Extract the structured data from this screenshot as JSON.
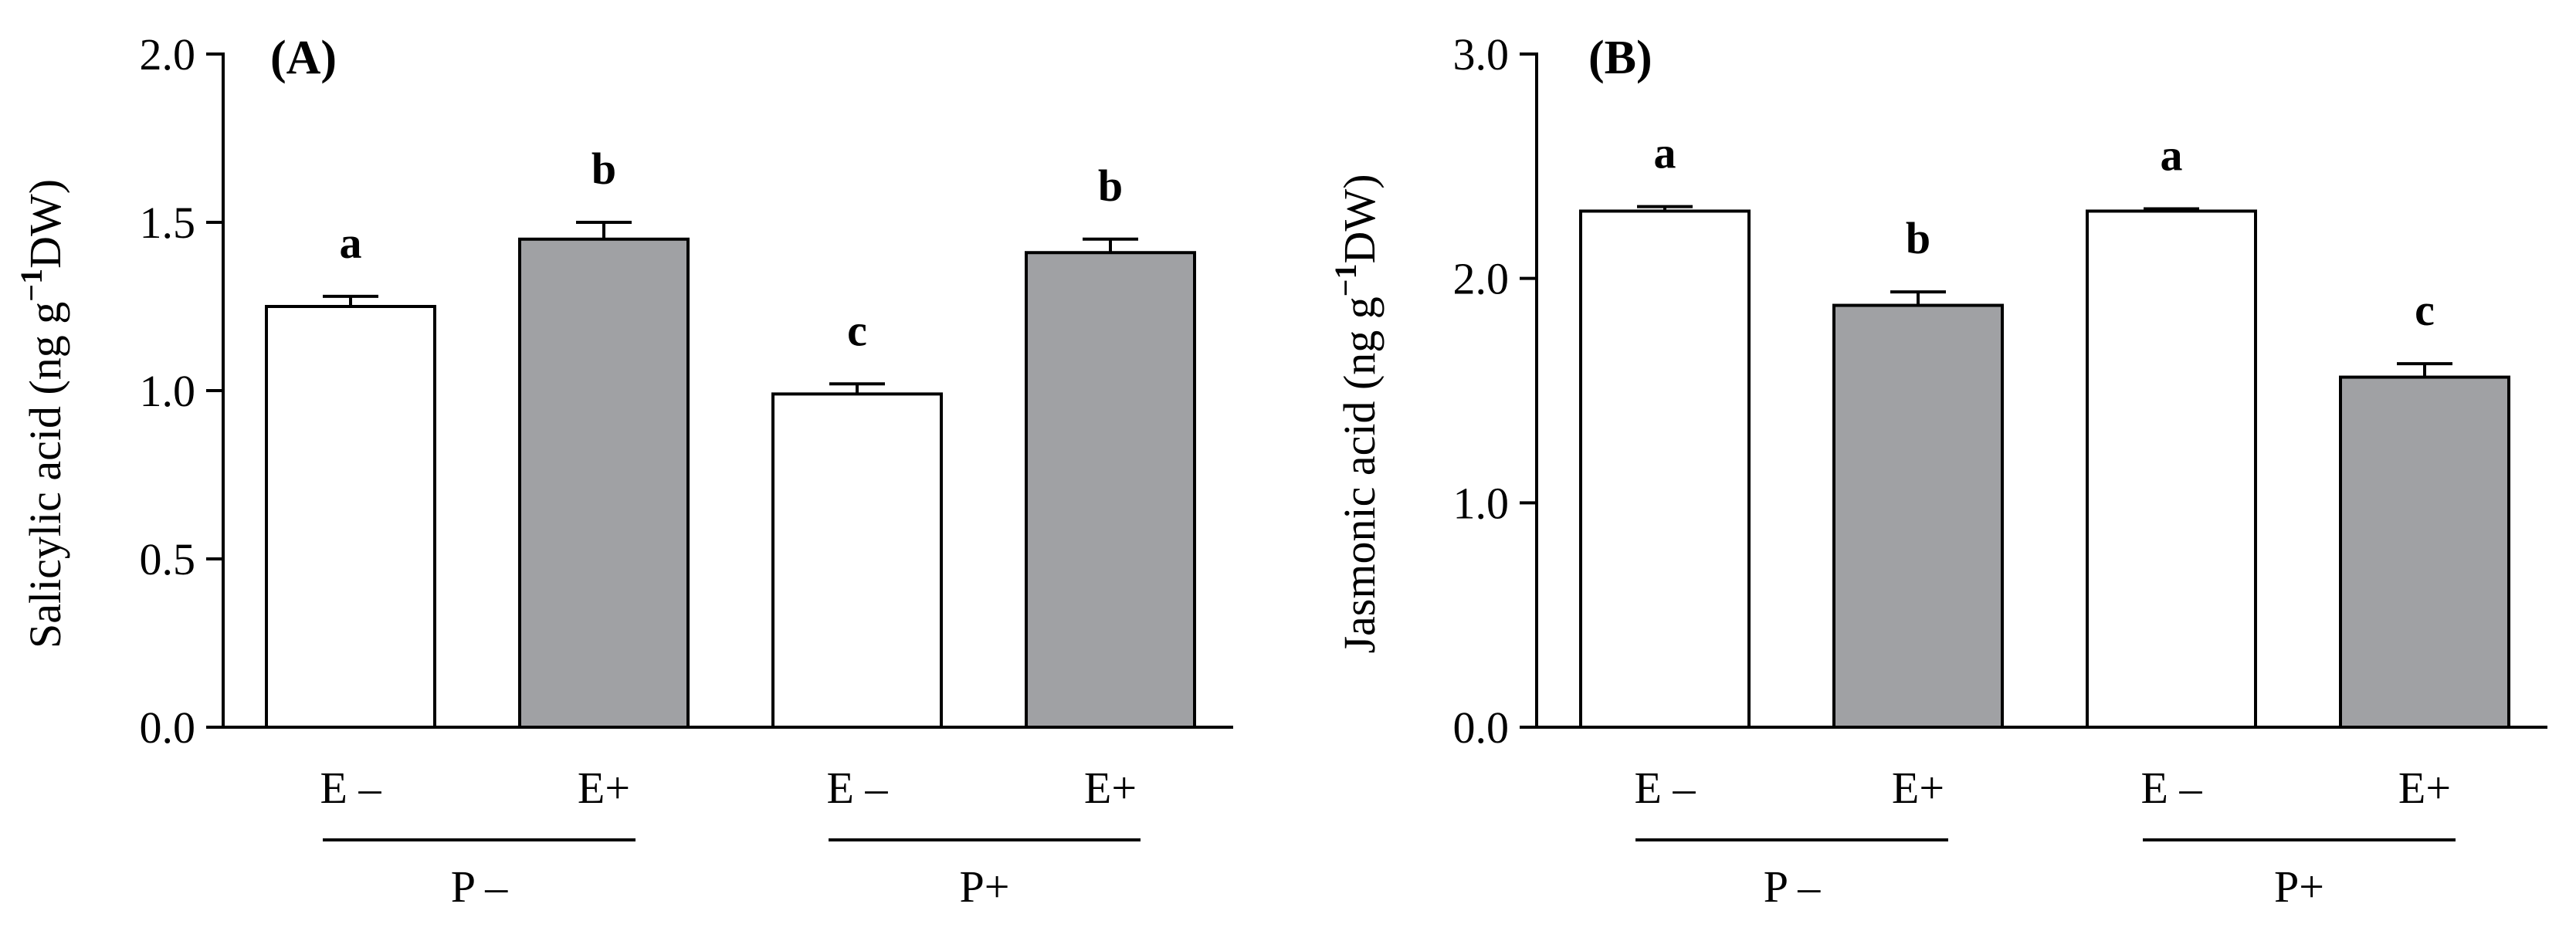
{
  "chart_data": [
    {
      "type": "bar",
      "panel_label": "(A)",
      "ylabel": "Salicylic acid (ng g",
      "ylabel_sup": "−1",
      "ylabel_tail": "DW)",
      "ylim": [
        0,
        2.0
      ],
      "yticks": [
        "0.0",
        "0.5",
        "1.0",
        "1.5",
        "2.0"
      ],
      "ytick_values": [
        0,
        0.5,
        1.0,
        1.5,
        2.0
      ],
      "categories": [
        "E –",
        "E+",
        "E –",
        "E+"
      ],
      "groups": [
        "P –",
        "P+"
      ],
      "values": [
        1.25,
        1.45,
        0.99,
        1.41
      ],
      "errors": [
        0.03,
        0.05,
        0.03,
        0.04
      ],
      "significance": [
        "a",
        "b",
        "c",
        "b"
      ],
      "fill_colors": [
        "#ffffff",
        "#a0a1a4",
        "#ffffff",
        "#a0a1a4"
      ]
    },
    {
      "type": "bar",
      "panel_label": "(B)",
      "ylabel": "Jasmonic acid (ng g",
      "ylabel_sup": "−1",
      "ylabel_tail": "DW)",
      "ylim": [
        0,
        3.0
      ],
      "yticks": [
        "0.0",
        "1.0",
        "2.0",
        "3.0"
      ],
      "ytick_values": [
        0,
        1.0,
        2.0,
        3.0
      ],
      "categories": [
        "E –",
        "E+",
        "E –",
        "E+"
      ],
      "groups": [
        "P –",
        "P+"
      ],
      "values": [
        2.3,
        1.88,
        2.3,
        1.56
      ],
      "errors": [
        0.02,
        0.06,
        0.01,
        0.06
      ],
      "significance": [
        "a",
        "b",
        "a",
        "c"
      ],
      "fill_colors": [
        "#ffffff",
        "#a0a1a4",
        "#ffffff",
        "#a0a1a4"
      ]
    }
  ]
}
